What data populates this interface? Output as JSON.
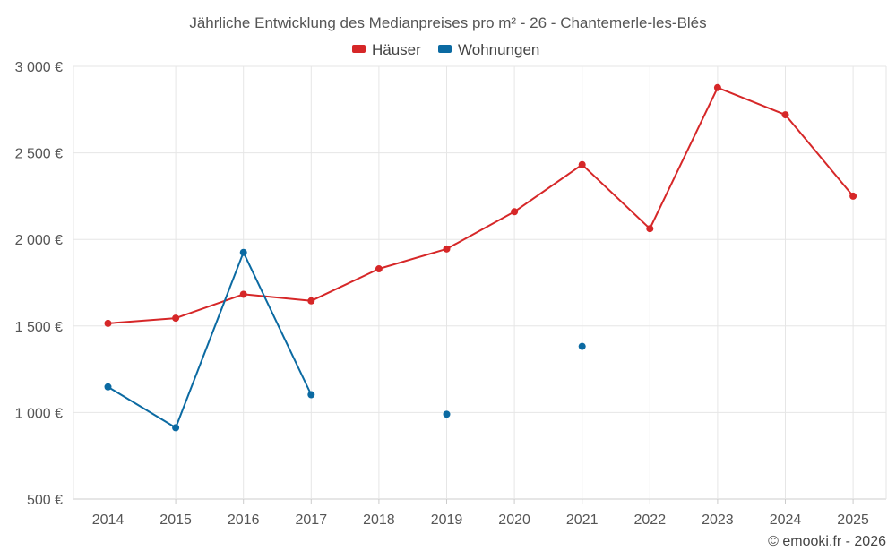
{
  "chart_data": {
    "type": "line",
    "title": "Jährliche Entwicklung des Medianpreises pro m² - 26 - Chantemerle-les-Blés",
    "categories": [
      "2014",
      "2015",
      "2016",
      "2017",
      "2018",
      "2019",
      "2020",
      "2021",
      "2022",
      "2023",
      "2024",
      "2025"
    ],
    "series": [
      {
        "name": "Häuser",
        "color": "#d62728",
        "values": [
          1515,
          1545,
          1683,
          1645,
          1830,
          1945,
          2160,
          2432,
          2062,
          2877,
          2720,
          2250
        ]
      },
      {
        "name": "Wohnungen",
        "color": "#0b6aa2",
        "values": [
          1148,
          912,
          1925,
          1103,
          null,
          990,
          null,
          1382,
          null,
          null,
          null,
          null
        ]
      }
    ],
    "ylim": [
      500,
      3000
    ],
    "yticks": [
      500,
      1000,
      1500,
      2000,
      2500,
      3000
    ],
    "ytick_labels": [
      "500 €",
      "1 000 €",
      "1 500 €",
      "2 000 €",
      "2 500 €",
      "3 000 €"
    ],
    "legend_position": "top-center",
    "grid": true
  },
  "credit": "© emooki.fr - 2026"
}
